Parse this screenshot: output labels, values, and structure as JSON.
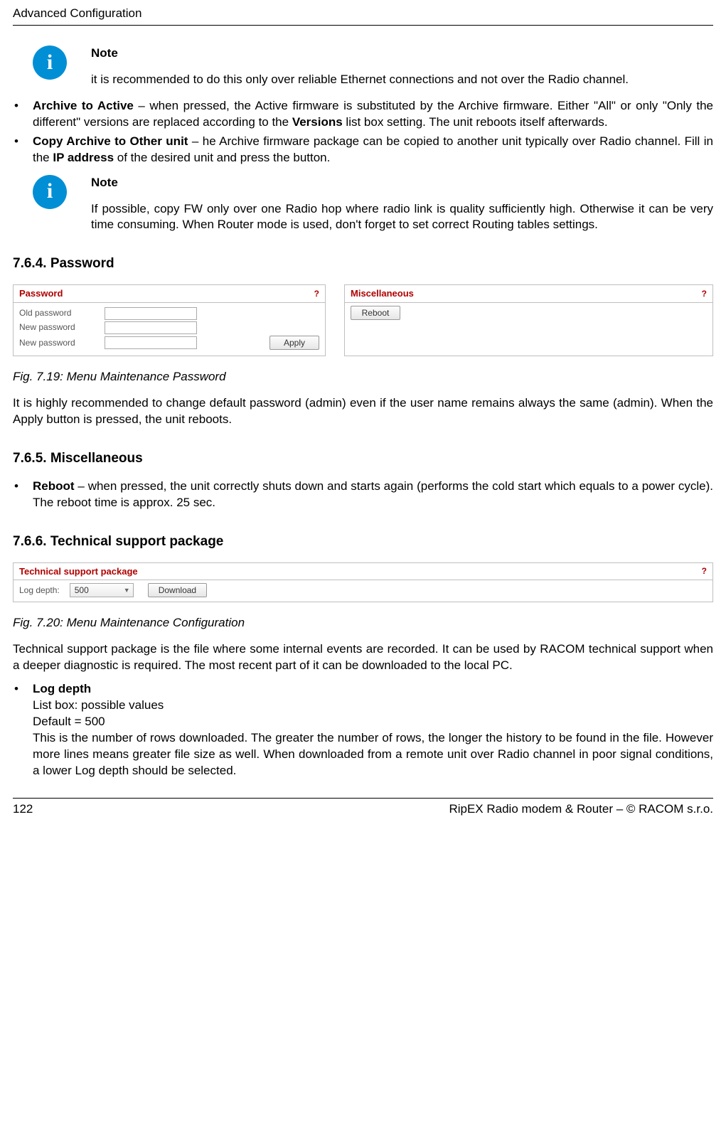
{
  "header": {
    "title": "Advanced Configuration"
  },
  "note1": {
    "label": "Note",
    "text": "it is recommended to do this only over reliable Ethernet connections and not over the Radio channel."
  },
  "bullets1": {
    "archive_lead": "Archive to Active",
    "archive_tail": " – when pressed, the Active firmware is substituted by the Archive firmware. Either \"All\" or only \"Only the different\" versions are replaced according to the ",
    "archive_bold2": "Versions",
    "archive_tail2": " list box setting. The unit reboots itself afterwards.",
    "copy_lead": "Copy Archive to Other unit",
    "copy_mid": " – he Archive firmware package can be copied to another unit typically over Radio channel. Fill in the ",
    "copy_bold2": "IP address",
    "copy_tail": " of the desired unit and press the button."
  },
  "note2": {
    "label": "Note",
    "text": "If possible, copy FW only over one Radio hop where radio link is quality sufficiently high. Otherwise it can be very time consuming. When Router mode is used, don't forget to set correct Routing tables settings."
  },
  "sec_password": {
    "title": "7.6.4. Password"
  },
  "password_panel": {
    "title": "Password",
    "help": "?",
    "old_label": "Old password",
    "new1_label": "New password",
    "new2_label": "New password",
    "apply": "Apply"
  },
  "misc_panel": {
    "title": "Miscellaneous",
    "help": "?",
    "reboot": "Reboot"
  },
  "fig19": {
    "caption": "Fig. 7.19: Menu Maintenance Password"
  },
  "password_para": "It is highly recommended to change default password (admin) even if the user name remains always the same (admin). When the Apply button is pressed, the unit reboots.",
  "sec_misc": {
    "title": "7.6.5. Miscellaneous"
  },
  "reboot_bullet": {
    "lead": "Reboot",
    "tail": " – when pressed, the unit correctly shuts down and starts again (performs the cold start which equals to a power cycle). The reboot time is approx. 25 sec."
  },
  "sec_tech": {
    "title": "7.6.6. Technical support package"
  },
  "tech_panel": {
    "title": "Technical support package",
    "help": "?",
    "log_depth_label": "Log depth:",
    "log_depth_value": "500",
    "download": "Download"
  },
  "fig20": {
    "caption": "Fig. 7.20: Menu Maintenance Configuration"
  },
  "tech_para": "Technical support package is the file where some internal events are recorded. It can be used by RACOM technical support when a deeper diagnostic is required. The most recent part of it can be downloaded to the local PC.",
  "logdepth_bullet": {
    "lead": "Log depth",
    "line1": "List box: possible values",
    "line2": "Default = 500",
    "line3": "This is the number of rows downloaded. The greater the number of rows, the longer the history to be found in the file. However more lines means greater file size as well. When downloaded from a remote unit over Radio channel in poor signal conditions, a lower Log depth should be selected."
  },
  "footer": {
    "page": "122",
    "doc": "RipEX Radio modem & Router – © RACOM s.r.o."
  },
  "colors": {
    "note_bg": "#008fd5",
    "ui_accent": "#b00000",
    "border": "#bfbfbf"
  }
}
